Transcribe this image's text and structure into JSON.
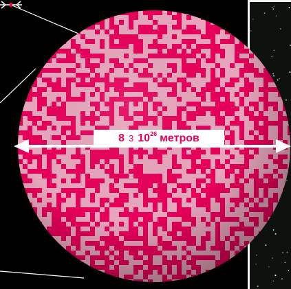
{
  "diagram": {
    "label": {
      "coefficient": "8",
      "times_sign": "3",
      "base": "10",
      "exponent": "26",
      "unit": "метров"
    },
    "colors": {
      "background": "#000000",
      "sphere_primary": "#e8005a",
      "sphere_secondary": "#e8a6bd",
      "arrow": "#ffffff",
      "label_text": "#e8005a",
      "label_background": "#ffffff",
      "marker": "#e8005a"
    },
    "icons": {
      "left_arrow": "arrow-left-icon",
      "right_arrow": "arrow-right-icon",
      "marker": "tiny-universe-marker-icon"
    }
  }
}
